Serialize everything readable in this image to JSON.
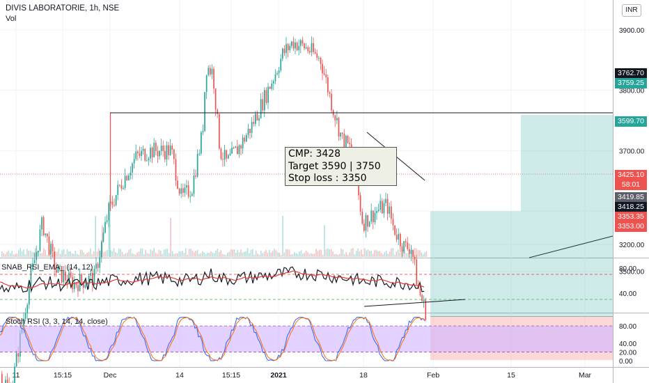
{
  "header": {
    "symbol_title": "DIVIS LABORATORIE, 1h, NSE",
    "volume_label": "Vol",
    "currency": "INR"
  },
  "indicators": {
    "rsi_ema_label": "SNAB_RSI_EMA_ (14, 12)",
    "stoch_rsi_label": "Stoch RSI (3, 3, 14, 14, close)"
  },
  "annotation": {
    "line1": "CMP: 3428",
    "line2": "Target 3590 | 3750",
    "line3": "Stop loss : 3350"
  },
  "price_tags": [
    {
      "text": "3762.70",
      "color": "#131722"
    },
    {
      "text": "3759.25",
      "color": "#26a69a"
    },
    {
      "text": "3599.70",
      "color": "#26a69a"
    },
    {
      "text": "3425.10",
      "color": "#ef5350"
    },
    {
      "text": "58:01",
      "color": "#ef5350"
    },
    {
      "text": "3419.85",
      "color": "#5d606b"
    },
    {
      "text": "3418.25",
      "color": "#131722"
    },
    {
      "text": "3353.35",
      "color": "#ef5350"
    },
    {
      "text": "3353.00",
      "color": "#ef5350"
    }
  ],
  "chart_data": [
    {
      "type": "candlestick",
      "title": "DIVIS LABORATORIE, 1h, NSE",
      "y_ticks": [
        "3900.00",
        "3800.00",
        "3700.00",
        "3600.00",
        "3500.00",
        "3200.00"
      ],
      "x_ticks": [
        "11",
        "15:15",
        "Dec",
        "14",
        "15:15",
        "2021",
        "18",
        "Feb",
        "15",
        "Mar"
      ],
      "series": [
        {
          "type": "candlestick",
          "approx_trajectory": [
            [
              0,
              3330
            ],
            [
              15,
              3300
            ],
            [
              40,
              3470
            ],
            [
              60,
              3580
            ],
            [
              80,
              3500
            ],
            [
              105,
              3480
            ],
            [
              135,
              3490
            ],
            [
              155,
              3600
            ],
            [
              175,
              3650
            ],
            [
              195,
              3690
            ],
            [
              215,
              3700
            ],
            [
              245,
              3700
            ],
            [
              260,
              3620
            ],
            [
              275,
              3640
            ],
            [
              290,
              3730
            ],
            [
              295,
              3840
            ],
            [
              305,
              3830
            ],
            [
              315,
              3700
            ],
            [
              325,
              3680
            ],
            [
              345,
              3710
            ],
            [
              360,
              3740
            ],
            [
              380,
              3790
            ],
            [
              395,
              3830
            ],
            [
              405,
              3860
            ],
            [
              420,
              3880
            ],
            [
              440,
              3870
            ],
            [
              460,
              3850
            ],
            [
              475,
              3780
            ],
            [
              490,
              3720
            ],
            [
              505,
              3700
            ],
            [
              520,
              3580
            ],
            [
              540,
              3600
            ],
            [
              555,
              3610
            ],
            [
              565,
              3570
            ],
            [
              580,
              3540
            ],
            [
              590,
              3540
            ],
            [
              600,
              3470
            ],
            [
              612,
              3428
            ]
          ]
        },
        {
          "type": "volume",
          "name": "Vol"
        }
      ],
      "horizontal_levels": [
        3762.7
      ],
      "trendlines": "support trendline under recent swing lows",
      "long_position": {
        "entry": 3425.1,
        "target1": 3599.7,
        "target2": 3759.25,
        "stop": 3353.0
      }
    },
    {
      "type": "line",
      "title": "SNAB_RSI_EMA_ (14, 12)",
      "y_ticks": [
        "80.00",
        "40.00"
      ],
      "levels": [
        70,
        30
      ],
      "series": [
        {
          "name": "RSI",
          "color": "#131722"
        },
        {
          "name": "EMA",
          "color": "#e53935"
        }
      ]
    },
    {
      "type": "line",
      "title": "Stoch RSI (3, 3, 14, 14, close)",
      "y_ticks": [
        "80.00",
        "40.00",
        "20.00",
        "0.00"
      ],
      "band": [
        20,
        80
      ],
      "series": [
        {
          "name": "K",
          "color": "#2962ff"
        },
        {
          "name": "D",
          "color": "#ff6d00"
        }
      ]
    }
  ]
}
